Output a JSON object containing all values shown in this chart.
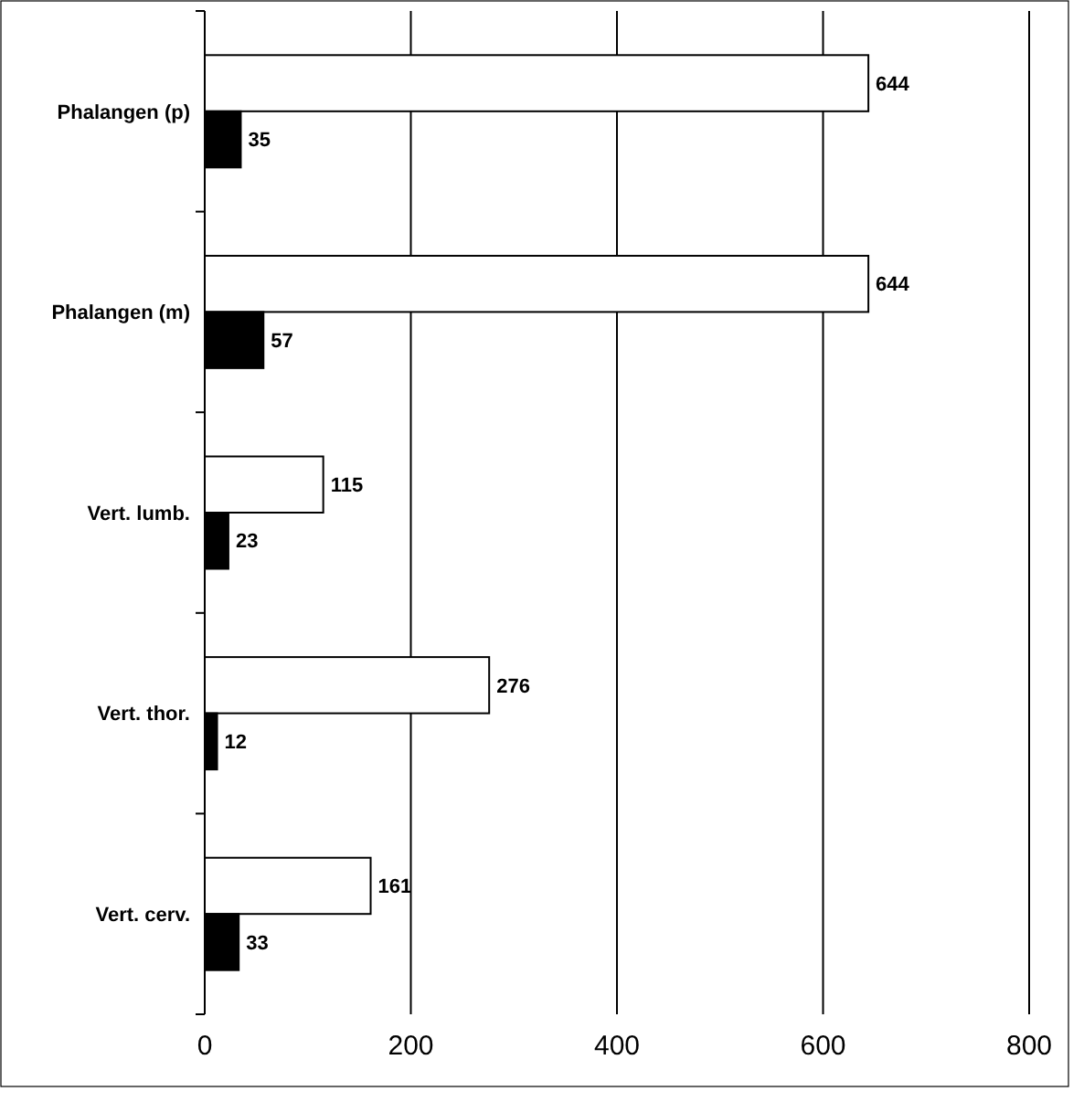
{
  "chart_data": {
    "type": "bar",
    "orientation": "horizontal",
    "categories": [
      "Phalangen (p)",
      "Phalangen (m)",
      "Vert. lumb.",
      "Vert. thor.",
      "Vert. cerv."
    ],
    "series": [
      {
        "color": "#ffffff",
        "values": [
          644,
          644,
          115,
          276,
          161
        ]
      },
      {
        "color": "#000000",
        "values": [
          35,
          57,
          23,
          12,
          33
        ]
      }
    ],
    "xlim": [
      0,
      800
    ],
    "xticks": [
      0,
      200,
      400,
      600,
      800
    ],
    "grid": "x",
    "data_labels": true
  }
}
